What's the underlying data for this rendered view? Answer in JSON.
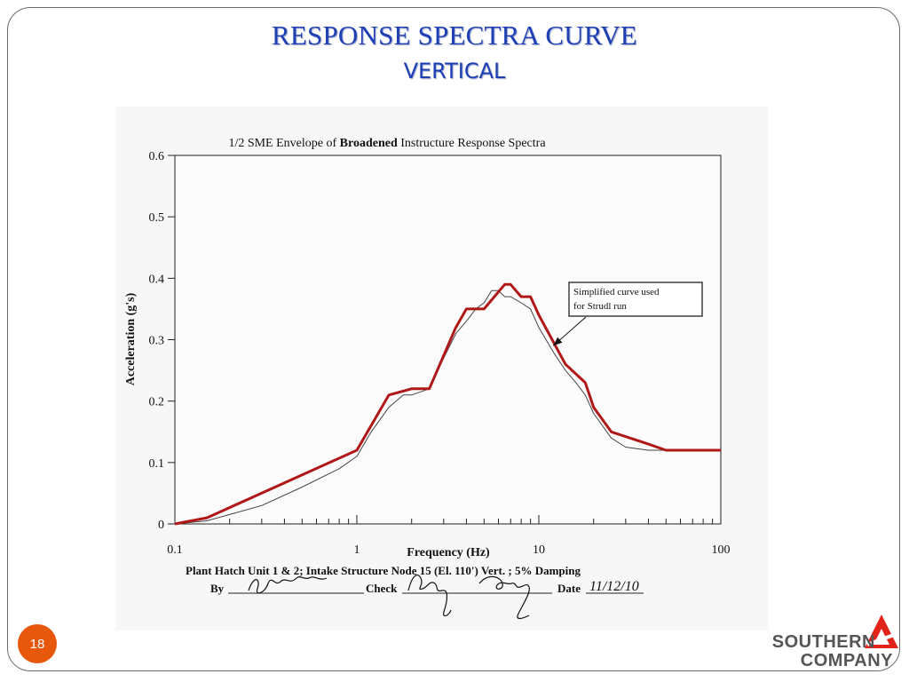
{
  "slide": {
    "title_line1": "RESPONSE  SPECTRA CURVE",
    "title_line2": "VERTICAL",
    "page_number": "18",
    "logo_line1": "SOUTHERN",
    "logo_line2": "COMPANY",
    "accent_color": "#1f3fb5",
    "badge_color": "#e8580c",
    "logo_color": "#e2231a"
  },
  "chart_data": {
    "type": "line",
    "title_parts": [
      "1/2 SME Envelope of ",
      "Broadened",
      " Instructure Response Spectra"
    ],
    "xlabel": "Frequency (Hz)",
    "ylabel": "Acceleration (g's)",
    "xscale": "log",
    "xlim": [
      0.1,
      100
    ],
    "ylim": [
      0,
      0.6
    ],
    "x_tick_labels": [
      "0.1",
      "1",
      "10",
      "100"
    ],
    "y_tick_labels": [
      "0",
      "0.1",
      "0.2",
      "0.3",
      "0.4",
      "0.5",
      "0.6"
    ],
    "grid": false,
    "series": [
      {
        "role": "envelope",
        "color": "#b01818",
        "x": [
          0.1,
          0.15,
          1.0,
          1.5,
          2.0,
          2.5,
          3.5,
          4.0,
          5.0,
          6.5,
          7.0,
          8.0,
          9.0,
          10.0,
          14.0,
          18.0,
          20.0,
          25.0,
          40.0,
          50.0,
          100.0
        ],
        "y": [
          0.0,
          0.01,
          0.12,
          0.21,
          0.22,
          0.22,
          0.32,
          0.35,
          0.35,
          0.39,
          0.39,
          0.37,
          0.37,
          0.34,
          0.26,
          0.23,
          0.19,
          0.15,
          0.13,
          0.12,
          0.12
        ]
      },
      {
        "role": "raw",
        "color": "#444444",
        "x": [
          0.1,
          0.15,
          0.3,
          0.5,
          0.8,
          1.0,
          1.2,
          1.5,
          1.8,
          2.0,
          2.5,
          3.0,
          3.5,
          4.0,
          4.5,
          5.0,
          5.5,
          6.0,
          6.5,
          7.0,
          8.0,
          9.0,
          10.0,
          12.0,
          14.0,
          16.0,
          18.0,
          20.0,
          25.0,
          30.0,
          40.0,
          50.0,
          100.0
        ],
        "y": [
          0.0,
          0.005,
          0.03,
          0.06,
          0.09,
          0.11,
          0.15,
          0.19,
          0.21,
          0.21,
          0.22,
          0.27,
          0.31,
          0.33,
          0.35,
          0.36,
          0.38,
          0.38,
          0.37,
          0.37,
          0.36,
          0.35,
          0.32,
          0.28,
          0.25,
          0.23,
          0.21,
          0.18,
          0.14,
          0.125,
          0.12,
          0.12,
          0.12
        ]
      }
    ],
    "annotation": {
      "lines": [
        "Simplified curve used",
        "for Strudl run"
      ],
      "arrow_to": {
        "x": 12.0,
        "y": 0.29
      }
    },
    "footer": {
      "caption": "Plant Hatch Unit 1 & 2; Intake Structure Node 15 (El. 110') Vert. ; 5% Damping",
      "by_label": "By",
      "check_label": "Check",
      "date_label": "Date",
      "date_value": "11/12/10"
    }
  }
}
